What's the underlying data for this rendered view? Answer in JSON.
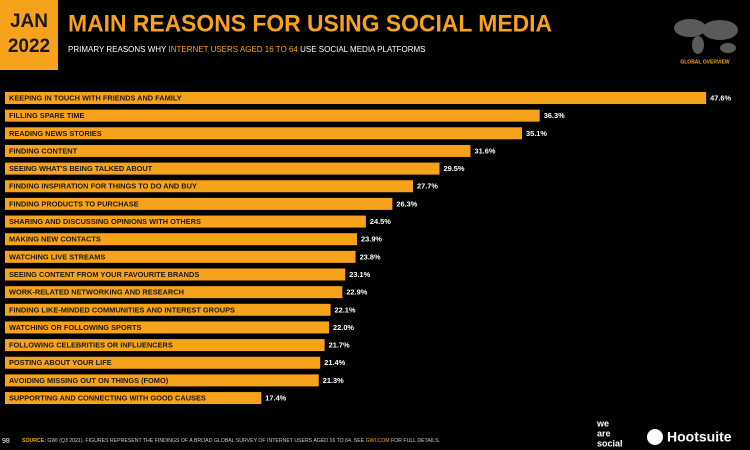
{
  "header": {
    "badge": [
      "JAN",
      "2022"
    ],
    "title": "MAIN REASONS FOR USING SOCIAL MEDIA",
    "subtitle": [
      "PRIMARY REASONS WHY",
      "INTERNET USERS AGED 16 TO 64",
      "USE SOCIAL MEDIA PLATFORMS"
    ],
    "region": "GLOBAL OVERVIEW"
  },
  "chart_data": {
    "type": "bar",
    "orientation": "horizontal",
    "color": "#f7a21b",
    "categories": [
      "KEEPING IN TOUCH WITH FRIENDS AND FAMILY",
      "FILLING SPARE TIME",
      "READING NEWS STORIES",
      "FINDING CONTENT",
      "SEEING WHAT'S BEING TALKED ABOUT",
      "FINDING INSPIRATION FOR THINGS TO DO AND BUY",
      "FINDING PRODUCTS TO PURCHASE",
      "SHARING AND DISCUSSING OPINIONS WITH OTHERS",
      "MAKING NEW CONTACTS",
      "WATCHING LIVE STREAMS",
      "SEEING CONTENT FROM YOUR FAVOURITE BRANDS",
      "WORK-RELATED NETWORKING AND RESEARCH",
      "FINDING LIKE-MINDED COMMUNITIES AND INTEREST GROUPS",
      "WATCHING OR FOLLOWING SPORTS",
      "FOLLOWING CELEBRITIES OR INFLUENCERS",
      "POSTING ABOUT YOUR LIFE",
      "AVOIDING MISSING OUT ON THINGS (FOMO)",
      "SUPPORTING AND CONNECTING WITH GOOD CAUSES"
    ],
    "values": [
      47.6,
      36.3,
      35.1,
      31.6,
      29.5,
      27.7,
      26.3,
      24.5,
      23.9,
      23.8,
      23.1,
      22.9,
      22.1,
      22.0,
      21.7,
      21.4,
      21.3,
      17.4
    ],
    "value_labels": [
      "47.6%",
      "36.3%",
      "35.1%",
      "31.6%",
      "29.5%",
      "27.7%",
      "26.3%",
      "24.5%",
      "23.9%",
      "23.8%",
      "23.1%",
      "22.9%",
      "22.1%",
      "22.0%",
      "21.7%",
      "21.4%",
      "21.3%",
      "17.4%"
    ]
  },
  "footer": {
    "source": [
      "SOURCE:",
      "GWI (Q3 2021). FIGURES REPRESENT THE FINDINGS OF A BROAD GLOBAL SURVEY OF INTERNET USERS AGED 16 TO 64. SEE",
      "GWI.COM",
      "FOR FULL DETAILS."
    ],
    "page": "98",
    "logos": {
      "we_are_social": [
        "we",
        "are",
        "social"
      ],
      "hootsuite": "Hootsuite"
    }
  }
}
